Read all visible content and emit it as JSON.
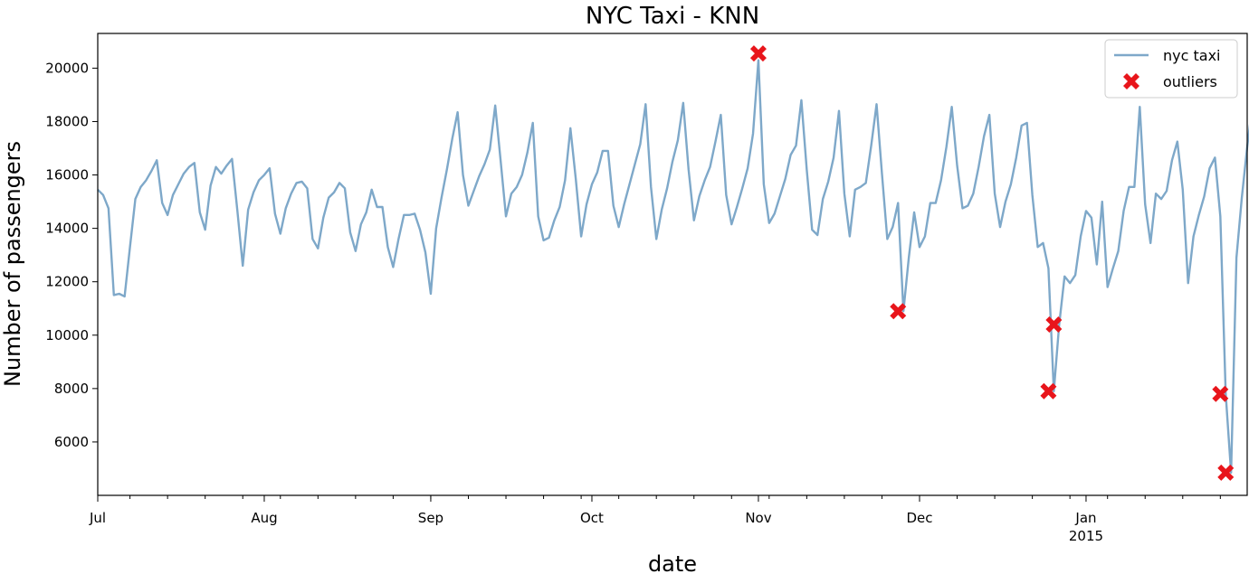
{
  "chart_data": {
    "type": "line",
    "title": "NYC Taxi - KNN",
    "xlabel": "date",
    "ylabel": "Number of passengers",
    "x_start": "2014-07-01",
    "x_end": "2015-01-31",
    "ylim": [
      4000,
      21300
    ],
    "y_ticks": [
      6000,
      8000,
      10000,
      12000,
      14000,
      16000,
      18000,
      20000
    ],
    "x_major_ticks": [
      {
        "date": "2014-07-01",
        "label": "Jul",
        "sub": ""
      },
      {
        "date": "2014-08-01",
        "label": "Aug",
        "sub": ""
      },
      {
        "date": "2014-09-01",
        "label": "Sep",
        "sub": ""
      },
      {
        "date": "2014-10-01",
        "label": "Oct",
        "sub": ""
      },
      {
        "date": "2014-11-01",
        "label": "Nov",
        "sub": ""
      },
      {
        "date": "2014-12-01",
        "label": "Dec",
        "sub": ""
      },
      {
        "date": "2015-01-01",
        "label": "Jan",
        "sub": "2015"
      }
    ],
    "grid": false,
    "legend": {
      "position": "top-right",
      "entries": [
        "nyc taxi",
        "outliers"
      ]
    },
    "colors": {
      "line": "#7ea8c9",
      "outlier": "#e8151b"
    },
    "series": [
      {
        "name": "nyc taxi",
        "type": "line",
        "y": [
          15450,
          15250,
          14750,
          11500,
          11550,
          11450,
          13300,
          15100,
          15550,
          15800,
          16150,
          16550,
          14950,
          14500,
          15250,
          15650,
          16050,
          16300,
          16450,
          14600,
          13950,
          15600,
          16300,
          16050,
          16350,
          16600,
          14650,
          12600,
          14700,
          15350,
          15800,
          16000,
          16250,
          14550,
          13800,
          14750,
          15300,
          15700,
          15750,
          15500,
          13600,
          13250,
          14400,
          15150,
          15350,
          15700,
          15500,
          13850,
          13150,
          14150,
          14600,
          15450,
          14800,
          14800,
          13300,
          12550,
          13600,
          14500,
          14500,
          14550,
          13950,
          13100,
          11550,
          14000,
          15150,
          16200,
          17350,
          18350,
          16000,
          14850,
          15400,
          15950,
          16400,
          16950,
          18600,
          16550,
          14450,
          15300,
          15550,
          16000,
          16850,
          17950,
          14450,
          13550,
          13650,
          14300,
          14800,
          15800,
          17750,
          15850,
          13700,
          14900,
          15650,
          16100,
          16900,
          16900,
          14850,
          14050,
          14900,
          15650,
          16400,
          17150,
          18650,
          15550,
          13600,
          14700,
          15500,
          16500,
          17300,
          18700,
          16200,
          14300,
          15200,
          15800,
          16300,
          17250,
          18250,
          15250,
          14150,
          14800,
          15500,
          16250,
          17550,
          20300,
          15650,
          14200,
          14550,
          15200,
          15850,
          16750,
          17100,
          18800,
          16200,
          13950,
          13750,
          15100,
          15750,
          16650,
          18400,
          15300,
          13700,
          15450,
          15550,
          15700,
          17100,
          18650,
          16050,
          13600,
          14050,
          14950,
          10900,
          12900,
          14600,
          13300,
          13700,
          14950,
          14950,
          15800,
          17050,
          18550,
          16350,
          14750,
          14850,
          15300,
          16300,
          17450,
          18250,
          15300,
          14050,
          15000,
          15650,
          16650,
          17850,
          17950,
          15250,
          13300,
          13450,
          12500,
          7900,
          10400,
          12200,
          11950,
          12250,
          13700,
          14650,
          14400,
          12650,
          15000,
          11800,
          12500,
          13150,
          14650,
          15550,
          15550,
          18550,
          14900,
          13450,
          15300,
          15100,
          15400,
          16550,
          17250,
          15450,
          11950,
          13700,
          14500,
          15200,
          16250,
          16650,
          14450,
          7800,
          4850,
          12900,
          15150,
          17050,
          18650
        ]
      },
      {
        "name": "outliers",
        "type": "scatter",
        "points": [
          {
            "date": "2014-11-01",
            "y": 20550
          },
          {
            "date": "2014-11-27",
            "y": 10900
          },
          {
            "date": "2014-12-25",
            "y": 7900
          },
          {
            "date": "2014-12-26",
            "y": 10400
          },
          {
            "date": "2015-01-26",
            "y": 7800
          },
          {
            "date": "2015-01-27",
            "y": 4850
          }
        ]
      }
    ]
  }
}
